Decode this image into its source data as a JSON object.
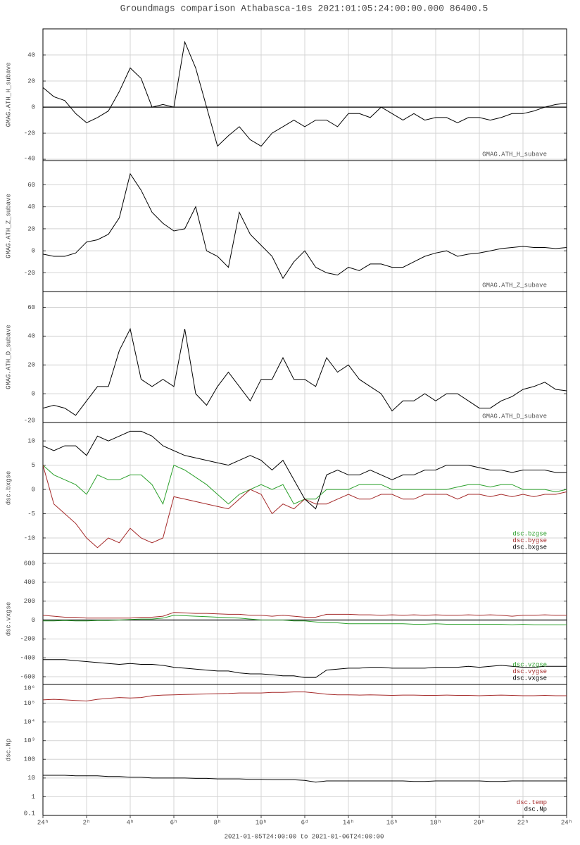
{
  "chart_data": [
    {
      "type": "line",
      "title": "Groundmags comparison Athabasca-10s 2021:01:05:24:00:00.000 86400.5",
      "ylabel": "GMAG.ATH_H_subave",
      "x": [
        0,
        0.5,
        1,
        1.5,
        2,
        2.5,
        3,
        3.5,
        4,
        4.5,
        5,
        5.5,
        6,
        6.5,
        7,
        7.5,
        8,
        8.5,
        9,
        9.5,
        10,
        10.5,
        11,
        11.5,
        12,
        12.5,
        13,
        13.5,
        14,
        14.5,
        15,
        15.5,
        16,
        16.5,
        17,
        17.5,
        18,
        18.5,
        19,
        19.5,
        20,
        20.5,
        21,
        21.5,
        22,
        22.5,
        23,
        23.5,
        24
      ],
      "series": [
        {
          "name": "GMAG.ATH_H_subave",
          "color": "#000000",
          "legend_color": "#555555",
          "values": [
            15,
            8,
            5,
            -5,
            -12,
            -8,
            -3,
            12,
            30,
            22,
            0,
            2,
            0,
            50,
            30,
            0,
            -30,
            -22,
            -15,
            -25,
            -30,
            -20,
            -15,
            -10,
            -15,
            -10,
            -10,
            -15,
            -5,
            -5,
            -8,
            0,
            -5,
            -10,
            -5,
            -10,
            -8,
            -8,
            -12,
            -8,
            -8,
            -10,
            -8,
            -5,
            -5,
            -3,
            0,
            2,
            3
          ]
        }
      ],
      "ylim": [
        -41,
        60
      ],
      "yticks": [
        -40,
        -20,
        0,
        20,
        40
      ],
      "grid": true,
      "zero_line": true
    },
    {
      "type": "line",
      "ylabel": "GMAG.ATH_Z_subave",
      "x": [
        0,
        0.5,
        1,
        1.5,
        2,
        2.5,
        3,
        3.5,
        4,
        4.5,
        5,
        5.5,
        6,
        6.5,
        7,
        7.5,
        8,
        8.5,
        9,
        9.5,
        10,
        10.5,
        11,
        11.5,
        12,
        12.5,
        13,
        13.5,
        14,
        14.5,
        15,
        15.5,
        16,
        16.5,
        17,
        17.5,
        18,
        18.5,
        19,
        19.5,
        20,
        20.5,
        21,
        21.5,
        22,
        22.5,
        23,
        23.5,
        24
      ],
      "series": [
        {
          "name": "GMAG.ATH_Z_subave",
          "color": "#000000",
          "legend_color": "#555555",
          "values": [
            -3,
            -5,
            -5,
            -2,
            8,
            10,
            15,
            30,
            70,
            55,
            35,
            25,
            18,
            20,
            40,
            0,
            -5,
            -15,
            35,
            15,
            5,
            -5,
            -25,
            -10,
            0,
            -15,
            -20,
            -22,
            -15,
            -18,
            -12,
            -12,
            -15,
            -15,
            -10,
            -5,
            -2,
            0,
            -5,
            -3,
            -2,
            0,
            2,
            3,
            4,
            3,
            3,
            2,
            3
          ]
        }
      ],
      "ylim": [
        -37,
        82
      ],
      "yticks": [
        -20,
        0,
        20,
        40,
        60
      ],
      "grid": true,
      "zero_line": false
    },
    {
      "type": "line",
      "ylabel": "GMAG.ATH_D_subave",
      "x": [
        0,
        0.5,
        1,
        1.5,
        2,
        2.5,
        3,
        3.5,
        4,
        4.5,
        5,
        5.5,
        6,
        6.5,
        7,
        7.5,
        8,
        8.5,
        9,
        9.5,
        10,
        10.5,
        11,
        11.5,
        12,
        12.5,
        13,
        13.5,
        14,
        14.5,
        15,
        15.5,
        16,
        16.5,
        17,
        17.5,
        18,
        18.5,
        19,
        19.5,
        20,
        20.5,
        21,
        21.5,
        22,
        22.5,
        23,
        23.5,
        24
      ],
      "series": [
        {
          "name": "GMAG.ATH_D_subave",
          "color": "#000000",
          "legend_color": "#555555",
          "values": [
            -10,
            -8,
            -10,
            -15,
            -5,
            5,
            5,
            30,
            45,
            10,
            5,
            10,
            5,
            45,
            0,
            -8,
            5,
            15,
            5,
            -5,
            10,
            10,
            25,
            10,
            10,
            5,
            25,
            15,
            20,
            10,
            5,
            0,
            -12,
            -5,
            -5,
            0,
            -5,
            0,
            0,
            -5,
            -10,
            -10,
            -5,
            -2,
            3,
            5,
            8,
            3,
            2
          ]
        }
      ],
      "ylim": [
        -20,
        71
      ],
      "yticks": [
        -20,
        0,
        20,
        40,
        60
      ],
      "grid": true,
      "zero_line": false
    },
    {
      "type": "line",
      "ylabel": "dsc.bxgse",
      "x": [
        0,
        0.5,
        1,
        1.5,
        2,
        2.5,
        3,
        3.5,
        4,
        4.5,
        5,
        5.5,
        6,
        6.5,
        7,
        7.5,
        8,
        8.5,
        9,
        9.5,
        10,
        10.5,
        11,
        11.5,
        12,
        12.5,
        13,
        13.5,
        14,
        14.5,
        15,
        15.5,
        16,
        16.5,
        17,
        17.5,
        18,
        18.5,
        19,
        19.5,
        20,
        20.5,
        21,
        21.5,
        22,
        22.5,
        23,
        23.5,
        24
      ],
      "series": [
        {
          "name": "dsc.bzgse",
          "color": "#2ca02c",
          "values": [
            5,
            3,
            2,
            1,
            -1,
            3,
            2,
            2,
            3,
            3,
            1,
            -3,
            5,
            4,
            2.5,
            1,
            -1,
            -3,
            -1,
            0,
            1,
            0,
            1,
            -3,
            -2,
            -2,
            0,
            0,
            0,
            1,
            1,
            1,
            0,
            0,
            0,
            0,
            0,
            0,
            0.5,
            1,
            1,
            0.5,
            1,
            1,
            0,
            0,
            0,
            -0.5,
            0
          ]
        },
        {
          "name": "dsc.bygse",
          "color": "#a52a2a",
          "values": [
            5,
            -3,
            -5,
            -7,
            -10,
            -12,
            -10,
            -11,
            -8,
            -10,
            -11,
            -10,
            -1.5,
            -2,
            -2.5,
            -3,
            -3.5,
            -4,
            -2,
            0,
            -1,
            -5,
            -3,
            -4,
            -2,
            -3,
            -3,
            -2,
            -1,
            -2,
            -2,
            -1,
            -1,
            -2,
            -2,
            -1,
            -1,
            -1,
            -2,
            -1,
            -1,
            -1.5,
            -1,
            -1.5,
            -1,
            -1.5,
            -1,
            -1,
            -0.5
          ]
        },
        {
          "name": "dsc.bxgse",
          "color": "#000000",
          "values": [
            9,
            8,
            9,
            9,
            7,
            11,
            10,
            11,
            12,
            12,
            11,
            9,
            8,
            7,
            6.5,
            6,
            5.5,
            5,
            6,
            7,
            6,
            4,
            6,
            2,
            -2,
            -4,
            3,
            4,
            3,
            3,
            4,
            3,
            2,
            3,
            3,
            4,
            4,
            5,
            5,
            5,
            4.5,
            4,
            4,
            3.5,
            4,
            4,
            4,
            3.5,
            3.5
          ]
        }
      ],
      "ylim": [
        -13.2,
        13.8
      ],
      "yticks": [
        -10,
        -5,
        0,
        5,
        10
      ],
      "grid": true,
      "zero_line": false
    },
    {
      "type": "line",
      "ylabel": "dsc.vxgse",
      "x": [
        0,
        0.5,
        1,
        1.5,
        2,
        2.5,
        3,
        3.5,
        4,
        4.5,
        5,
        5.5,
        6,
        6.5,
        7,
        7.5,
        8,
        8.5,
        9,
        9.5,
        10,
        10.5,
        11,
        11.5,
        12,
        12.5,
        13,
        13.5,
        14,
        14.5,
        15,
        15.5,
        16,
        16.5,
        17,
        17.5,
        18,
        18.5,
        19,
        19.5,
        20,
        20.5,
        21,
        21.5,
        22,
        22.5,
        23,
        23.5,
        24
      ],
      "series": [
        {
          "name": "dsc.vzgse",
          "color": "#2ca02c",
          "values": [
            -10,
            -10,
            -5,
            -10,
            -10,
            -5,
            -5,
            0,
            5,
            10,
            10,
            20,
            50,
            45,
            40,
            35,
            30,
            25,
            20,
            10,
            0,
            0,
            0,
            -10,
            -10,
            -20,
            -30,
            -30,
            -40,
            -40,
            -40,
            -40,
            -40,
            -40,
            -45,
            -45,
            -40,
            -45,
            -45,
            -45,
            -45,
            -45,
            -45,
            -50,
            -45,
            -50,
            -50,
            -50,
            -50
          ]
        },
        {
          "name": "dsc.vygse",
          "color": "#a52a2a",
          "values": [
            50,
            40,
            30,
            30,
            20,
            20,
            20,
            20,
            20,
            30,
            30,
            40,
            80,
            75,
            70,
            70,
            65,
            60,
            60,
            50,
            50,
            40,
            50,
            40,
            30,
            30,
            60,
            60,
            60,
            55,
            55,
            50,
            55,
            50,
            55,
            50,
            55,
            50,
            50,
            55,
            50,
            55,
            50,
            40,
            50,
            50,
            55,
            50,
            50
          ]
        },
        {
          "name": "dsc.vxgse",
          "color": "#000000",
          "values": [
            -420,
            -420,
            -420,
            -430,
            -440,
            -450,
            -460,
            -470,
            -460,
            -470,
            -470,
            -480,
            -500,
            -510,
            -520,
            -530,
            -540,
            -540,
            -560,
            -570,
            -570,
            -580,
            -590,
            -590,
            -610,
            -610,
            -530,
            -520,
            -510,
            -510,
            -500,
            -500,
            -510,
            -510,
            -510,
            -510,
            -500,
            -500,
            -500,
            -490,
            -500,
            -490,
            -480,
            -490,
            -500,
            -500,
            -490,
            -490,
            -490
          ]
        }
      ],
      "ylim": [
        -682,
        704
      ],
      "yticks": [
        -600,
        -400,
        -200,
        0,
        200,
        400,
        600
      ],
      "grid": true,
      "zero_line": true
    },
    {
      "type": "line",
      "ylabel": "dsc.Np",
      "xlabel": "2021-01-05T24:00:00 to 2021-01-06T24:00:00",
      "x": [
        0,
        0.5,
        1,
        1.5,
        2,
        2.5,
        3,
        3.5,
        4,
        4.5,
        5,
        5.5,
        6,
        6.5,
        7,
        7.5,
        8,
        8.5,
        9,
        9.5,
        10,
        10.5,
        11,
        11.5,
        12,
        12.5,
        13,
        13.5,
        14,
        14.5,
        15,
        15.5,
        16,
        16.5,
        17,
        17.5,
        18,
        18.5,
        19,
        19.5,
        20,
        20.5,
        21,
        21.5,
        22,
        22.5,
        23,
        23.5,
        24
      ],
      "series": [
        {
          "name": "dsc.temp",
          "color": "#a52a2a",
          "values": [
            150000,
            160000,
            150000,
            140000,
            130000,
            160000,
            180000,
            200000,
            190000,
            200000,
            250000,
            270000,
            280000,
            290000,
            300000,
            310000,
            320000,
            330000,
            350000,
            350000,
            350000,
            380000,
            380000,
            400000,
            400000,
            350000,
            300000,
            280000,
            280000,
            270000,
            280000,
            270000,
            260000,
            270000,
            270000,
            260000,
            260000,
            270000,
            260000,
            260000,
            250000,
            260000,
            270000,
            260000,
            250000,
            250000,
            260000,
            250000,
            250000
          ]
        },
        {
          "name": "dsc.Np",
          "color": "#000000",
          "values": [
            14,
            14,
            14,
            13,
            13,
            13,
            12,
            12,
            11,
            11,
            10,
            10,
            10,
            10,
            9.5,
            9.5,
            9,
            9,
            9,
            8.5,
            8.5,
            8,
            8,
            8,
            7.5,
            6,
            7,
            7,
            7,
            7,
            7,
            7,
            7,
            7,
            6.5,
            6.5,
            7,
            7,
            7,
            7,
            7,
            6.5,
            6.5,
            7,
            7,
            7,
            7,
            7,
            7
          ]
        }
      ],
      "ylim": [
        0.1,
        1000000
      ],
      "log_scale": true,
      "yticks": [
        0.1,
        1,
        10,
        100,
        {
          "value": 1000,
          "label": "10³"
        },
        {
          "value": 10000,
          "label": "10⁴"
        },
        {
          "value": 100000,
          "label": "10⁵"
        },
        {
          "value": 1000000,
          "label": "10⁶"
        }
      ],
      "xlim": [
        0,
        24
      ],
      "xticks": [
        {
          "value": 0,
          "label": "24ʰ"
        },
        {
          "value": 2,
          "label": "2ʰ"
        },
        {
          "value": 4,
          "label": "4ʰ"
        },
        {
          "value": 6,
          "label": "6ʰ"
        },
        {
          "value": 8,
          "label": "8ʰ"
        },
        {
          "value": 10,
          "label": "10ʰ"
        },
        {
          "value": 12,
          "label": "6ᵈ"
        },
        {
          "value": 14,
          "label": "14ʰ"
        },
        {
          "value": 16,
          "label": "16ʰ"
        },
        {
          "value": 18,
          "label": "18ʰ"
        },
        {
          "value": 20,
          "label": "20ʰ"
        },
        {
          "value": 22,
          "label": "22ʰ"
        },
        {
          "value": 24,
          "label": "24ʰ"
        }
      ],
      "grid": true,
      "zero_line": false
    }
  ]
}
